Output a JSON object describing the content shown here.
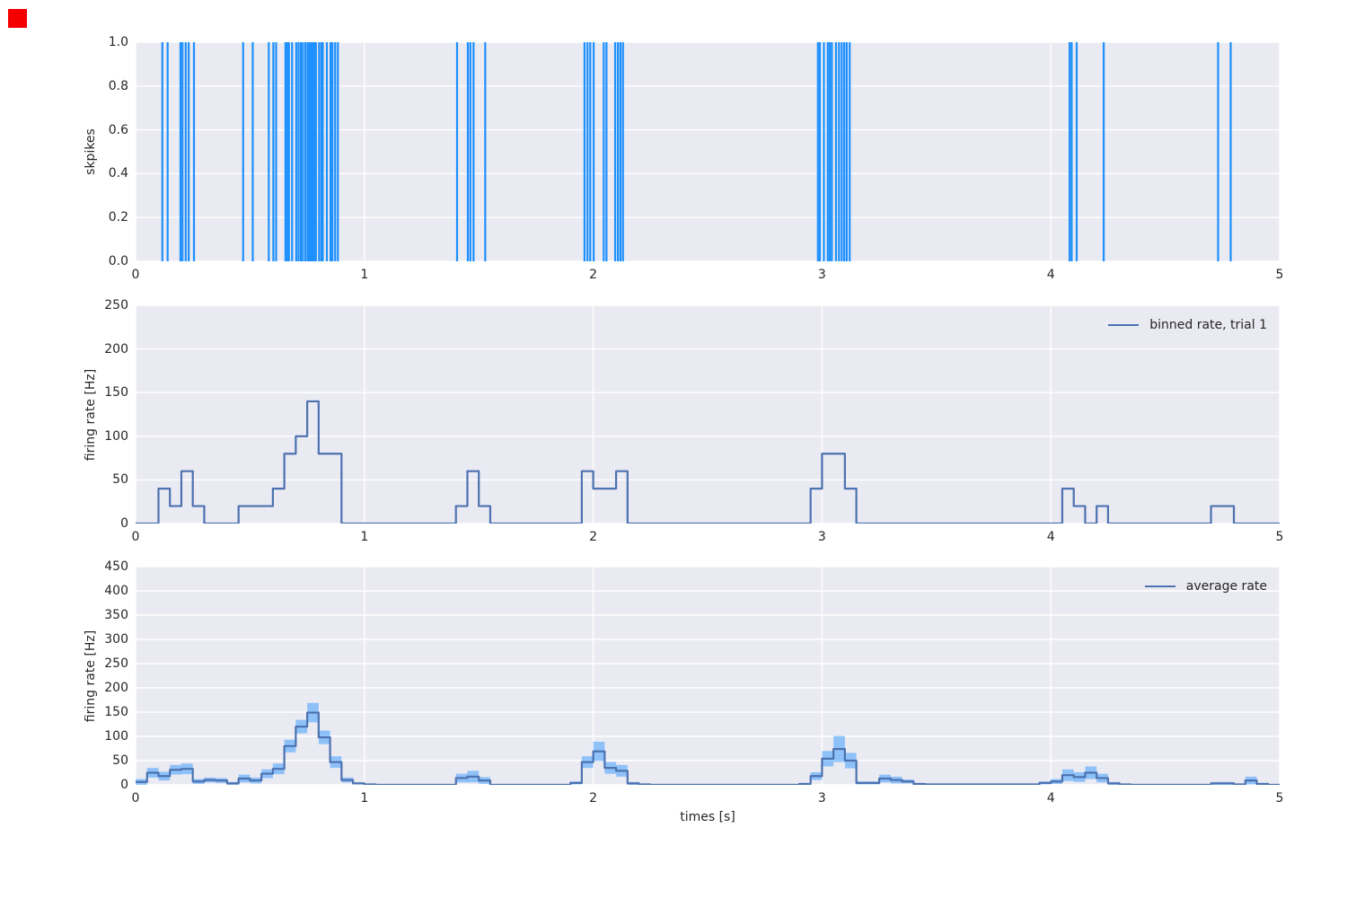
{
  "figure": {
    "background": "#ffffff",
    "axes_background": "#eaeaf2",
    "grid_color": "#ffffff",
    "text_color": "#262626",
    "red_square_color": "#f40000"
  },
  "colors": {
    "spike_line": "#1e90ff",
    "rate_line": "#4c72b0",
    "band_fill": "#1e90ff",
    "band_opacity": 0.45
  },
  "xlabel": "times [s]",
  "panels": [
    {
      "id": "raster",
      "ylabel": "skpikes",
      "y_ticks": [
        "0.0",
        "0.2",
        "0.4",
        "0.6",
        "0.8",
        "1.0"
      ],
      "x_ticks": [
        "0",
        "1",
        "2",
        "3",
        "4",
        "5"
      ],
      "legend_label": ""
    },
    {
      "id": "binned",
      "ylabel": "firing rate [Hz]",
      "y_ticks": [
        "0",
        "50",
        "100",
        "150",
        "200",
        "250"
      ],
      "x_ticks": [
        "0",
        "1",
        "2",
        "3",
        "4",
        "5"
      ],
      "legend_label": "binned rate, trial 1"
    },
    {
      "id": "average",
      "ylabel": "firing rate [Hz]",
      "y_ticks": [
        "0",
        "50",
        "100",
        "150",
        "200",
        "250",
        "300",
        "350",
        "400",
        "450"
      ],
      "x_ticks": [
        "0",
        "1",
        "2",
        "3",
        "4",
        "5"
      ],
      "legend_label": "average rate"
    }
  ],
  "chart_data": [
    {
      "type": "scatter",
      "subtype": "event-raster",
      "ylabel": "skpikes",
      "xlim": [
        0,
        5
      ],
      "ylim": [
        0,
        1
      ],
      "spike_times_s": [
        0.117,
        0.14,
        0.196,
        0.205,
        0.219,
        0.232,
        0.255,
        0.47,
        0.512,
        0.582,
        0.602,
        0.614,
        0.655,
        0.662,
        0.67,
        0.684,
        0.702,
        0.712,
        0.722,
        0.731,
        0.742,
        0.752,
        0.757,
        0.762,
        0.768,
        0.774,
        0.781,
        0.788,
        0.802,
        0.812,
        0.818,
        0.836,
        0.852,
        0.86,
        0.872,
        0.884,
        1.405,
        1.452,
        1.463,
        1.477,
        1.528,
        1.962,
        1.975,
        1.987,
        2.002,
        2.046,
        2.058,
        2.096,
        2.108,
        2.119,
        2.13,
        2.982,
        2.991,
        3.008,
        3.025,
        3.034,
        3.043,
        3.061,
        3.074,
        3.086,
        3.097,
        3.108,
        3.121,
        4.082,
        4.091,
        4.113,
        4.231,
        4.731,
        4.786
      ]
    },
    {
      "type": "line",
      "subtype": "step",
      "legend": "binned rate, trial 1",
      "ylabel": "firing rate [Hz]",
      "xlabel": "times [s]",
      "xlim": [
        0,
        5
      ],
      "ylim": [
        0,
        250
      ],
      "bin_width_s": 0.05,
      "segments_t0_t1_hz": [
        [
          0.1,
          0.15,
          40
        ],
        [
          0.15,
          0.2,
          20
        ],
        [
          0.2,
          0.25,
          60
        ],
        [
          0.25,
          0.3,
          20
        ],
        [
          0.45,
          0.6,
          20
        ],
        [
          0.6,
          0.65,
          40
        ],
        [
          0.65,
          0.7,
          80
        ],
        [
          0.7,
          0.75,
          100
        ],
        [
          0.75,
          0.8,
          140
        ],
        [
          0.8,
          0.9,
          80
        ],
        [
          1.4,
          1.45,
          20
        ],
        [
          1.45,
          1.5,
          60
        ],
        [
          1.5,
          1.55,
          20
        ],
        [
          1.95,
          2.0,
          60
        ],
        [
          2.0,
          2.1,
          40
        ],
        [
          2.1,
          2.15,
          60
        ],
        [
          2.95,
          3.0,
          40
        ],
        [
          3.0,
          3.1,
          80
        ],
        [
          3.1,
          3.15,
          40
        ],
        [
          4.05,
          4.1,
          40
        ],
        [
          4.1,
          4.15,
          20
        ],
        [
          4.2,
          4.25,
          20
        ],
        [
          4.7,
          4.8,
          20
        ]
      ]
    },
    {
      "type": "area",
      "subtype": "step-with-band",
      "legend": "average rate",
      "ylabel": "firing rate [Hz]",
      "xlabel": "times [s]",
      "xlim": [
        0,
        5
      ],
      "ylim": [
        0,
        450
      ],
      "bin_width_s": 0.05,
      "t_start_s": 0,
      "mean_hz": [
        6,
        25,
        18,
        31,
        33,
        7,
        10,
        9,
        3,
        13,
        9,
        23,
        33,
        80,
        120,
        149,
        98,
        47,
        10,
        3,
        1,
        0,
        0,
        0,
        0,
        0,
        0,
        0,
        14,
        17,
        9,
        0,
        0,
        0,
        0,
        0,
        0,
        0,
        4,
        47,
        69,
        35,
        29,
        3,
        1,
        0,
        0,
        0,
        0,
        0,
        0,
        0,
        0,
        0,
        0,
        0,
        0,
        0,
        2,
        18,
        54,
        74,
        50,
        4,
        4,
        13,
        10,
        7,
        2,
        1,
        1,
        1,
        1,
        1,
        1,
        1,
        1,
        1,
        1,
        4,
        7,
        20,
        16,
        25,
        14,
        3,
        1,
        0,
        0,
        0,
        0,
        0,
        0,
        0,
        3,
        3,
        1,
        9,
        2,
        0
      ],
      "std_hz": [
        6,
        10,
        9,
        10,
        11,
        5,
        5,
        5,
        3,
        8,
        6,
        9,
        11,
        13,
        14,
        20,
        14,
        12,
        5,
        2,
        1,
        0,
        0,
        0,
        0,
        0,
        0,
        0,
        9,
        12,
        7,
        0,
        0,
        0,
        0,
        0,
        0,
        0,
        3,
        12,
        20,
        12,
        12,
        3,
        1,
        0,
        0,
        0,
        0,
        0,
        0,
        0,
        0,
        0,
        0,
        0,
        0,
        0,
        2,
        8,
        16,
        27,
        16,
        3,
        3,
        8,
        7,
        4,
        2,
        1,
        1,
        1,
        1,
        1,
        1,
        1,
        1,
        1,
        1,
        3,
        5,
        12,
        10,
        13,
        9,
        3,
        1,
        0,
        0,
        0,
        0,
        0,
        0,
        0,
        3,
        3,
        1,
        8,
        2,
        0
      ]
    }
  ]
}
